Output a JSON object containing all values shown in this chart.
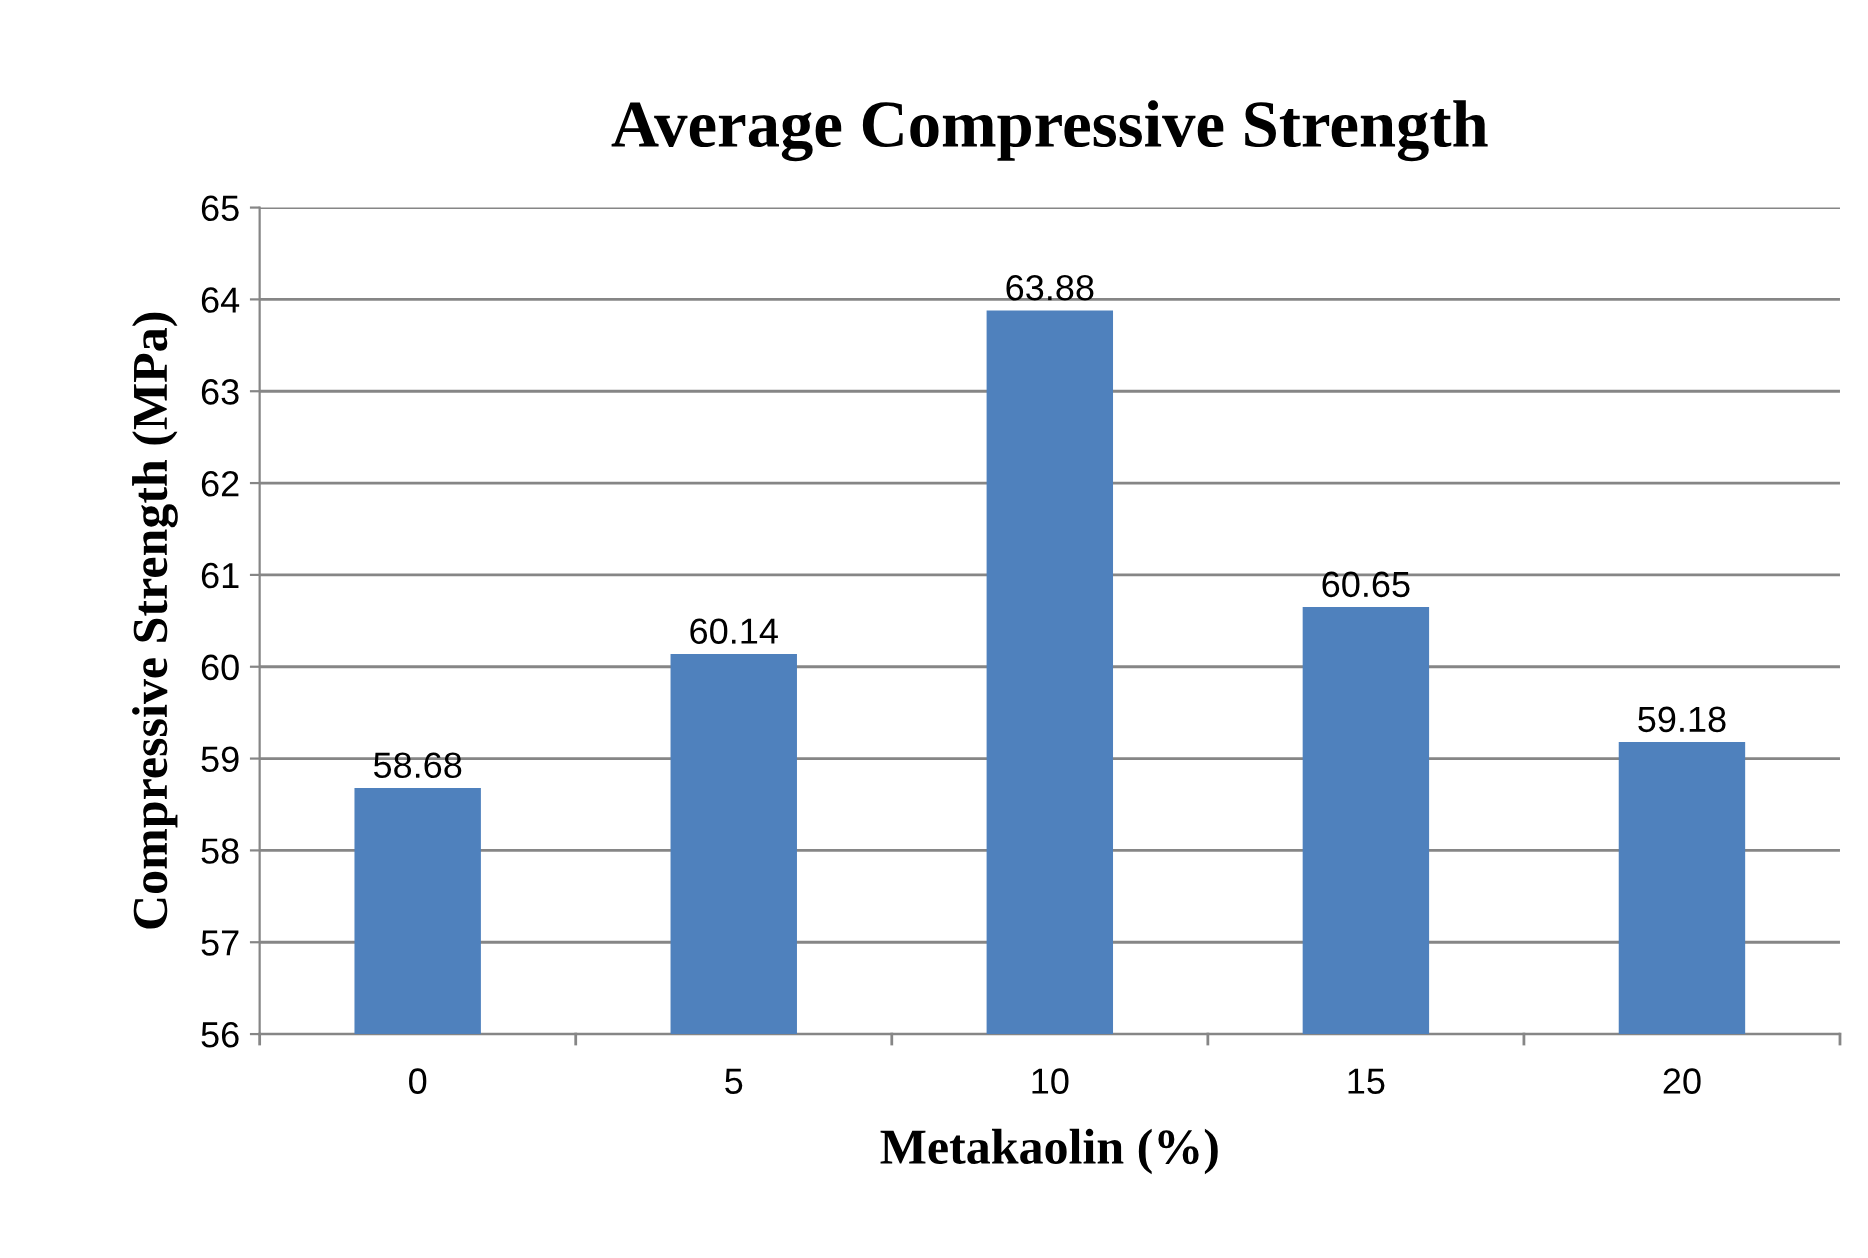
{
  "chart_data": {
    "type": "bar",
    "title": "Average Compressive Strength",
    "xlabel": "Metakaolin (%)",
    "ylabel": "Compressive Strength (MPa)",
    "categories": [
      "0",
      "5",
      "10",
      "15",
      "20"
    ],
    "values": [
      58.68,
      60.14,
      63.88,
      60.65,
      59.18
    ],
    "color": "#4f81bd",
    "ylim": [
      56,
      65
    ],
    "yticks": [
      56,
      57,
      58,
      59,
      60,
      61,
      62,
      63,
      64,
      65
    ],
    "grid": "y",
    "data_labels": true
  }
}
